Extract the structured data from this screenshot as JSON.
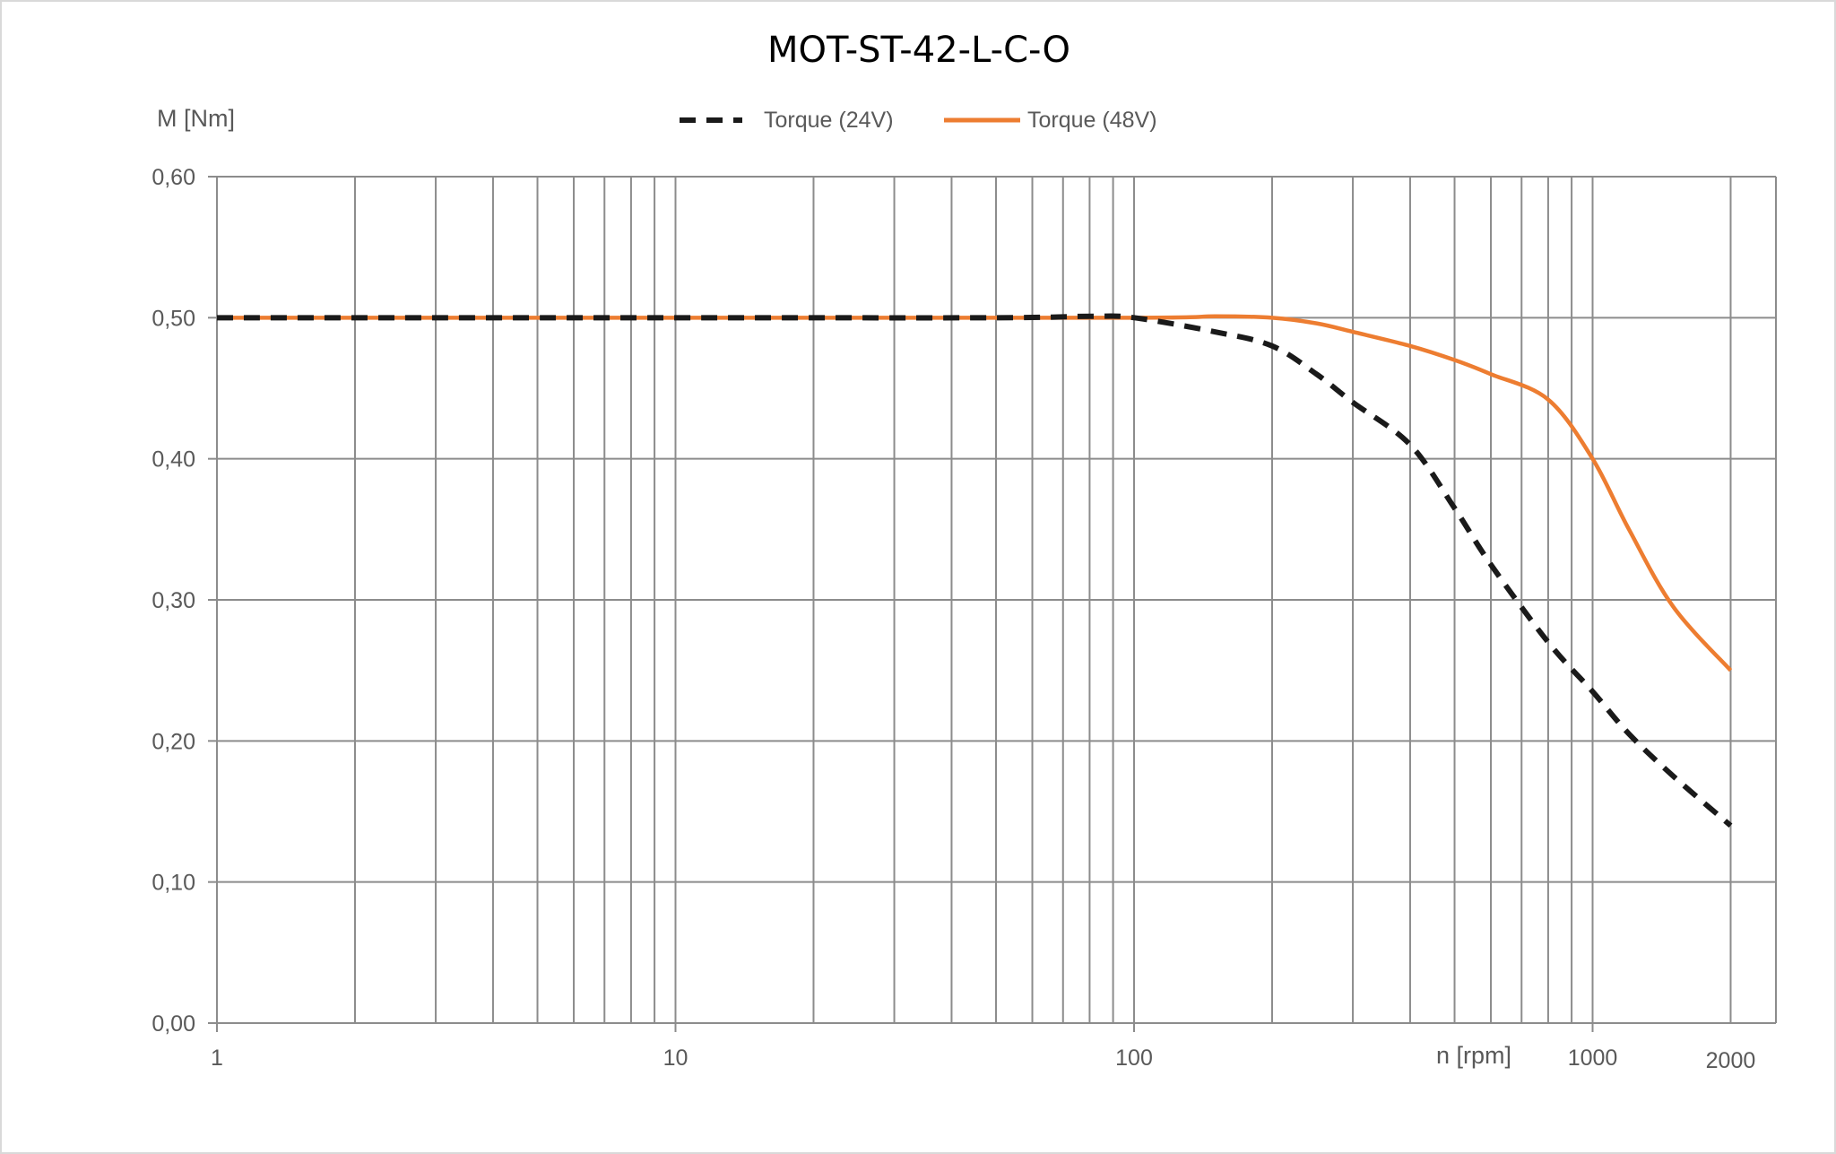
{
  "chart_data": {
    "type": "line",
    "title": "MOT-ST-42-L-C-O",
    "ylabel": "M [Nm]",
    "xlabel": "n [rpm]",
    "x_scale": "log",
    "xlim": [
      1,
      2800
    ],
    "ylim": [
      0,
      0.6
    ],
    "grid": true,
    "legend_position": "top-center",
    "y_ticks": [
      {
        "value": 0.0,
        "label": "0,00"
      },
      {
        "value": 0.1,
        "label": "0,10"
      },
      {
        "value": 0.2,
        "label": "0,20"
      },
      {
        "value": 0.3,
        "label": "0,30"
      },
      {
        "value": 0.4,
        "label": "0,40"
      },
      {
        "value": 0.5,
        "label": "0,50"
      },
      {
        "value": 0.6,
        "label": "0,60"
      }
    ],
    "x_ticks": [
      {
        "value": 1,
        "label": "1"
      },
      {
        "value": 10,
        "label": "10"
      },
      {
        "value": 100,
        "label": "100"
      },
      {
        "value": 1000,
        "label": "1000"
      },
      {
        "value": 2000,
        "label": "2000"
      }
    ],
    "x_minor_gridlines": [
      2,
      3,
      4,
      5,
      6,
      7,
      8,
      9,
      20,
      30,
      40,
      50,
      60,
      70,
      80,
      90,
      200,
      300,
      400,
      500,
      600,
      700,
      800,
      900,
      2000
    ],
    "series": [
      {
        "name": "Torque (24V)",
        "color": "#1a1a1a",
        "style": "dashed",
        "x": [
          1,
          10,
          50,
          80,
          100,
          150,
          200,
          250,
          300,
          400,
          500,
          600,
          800,
          1000,
          1200,
          1500,
          2000
        ],
        "y": [
          0.5,
          0.5,
          0.5,
          0.501,
          0.5,
          0.49,
          0.48,
          0.46,
          0.44,
          0.41,
          0.365,
          0.325,
          0.27,
          0.235,
          0.205,
          0.175,
          0.14
        ]
      },
      {
        "name": "Torque (48V)",
        "color": "#ed7d31",
        "style": "solid",
        "x": [
          1,
          10,
          100,
          150,
          200,
          250,
          300,
          400,
          500,
          600,
          800,
          1000,
          1200,
          1500,
          2000
        ],
        "y": [
          0.5,
          0.5,
          0.5,
          0.501,
          0.5,
          0.496,
          0.49,
          0.48,
          0.47,
          0.46,
          0.442,
          0.4,
          0.35,
          0.295,
          0.25
        ]
      }
    ]
  }
}
